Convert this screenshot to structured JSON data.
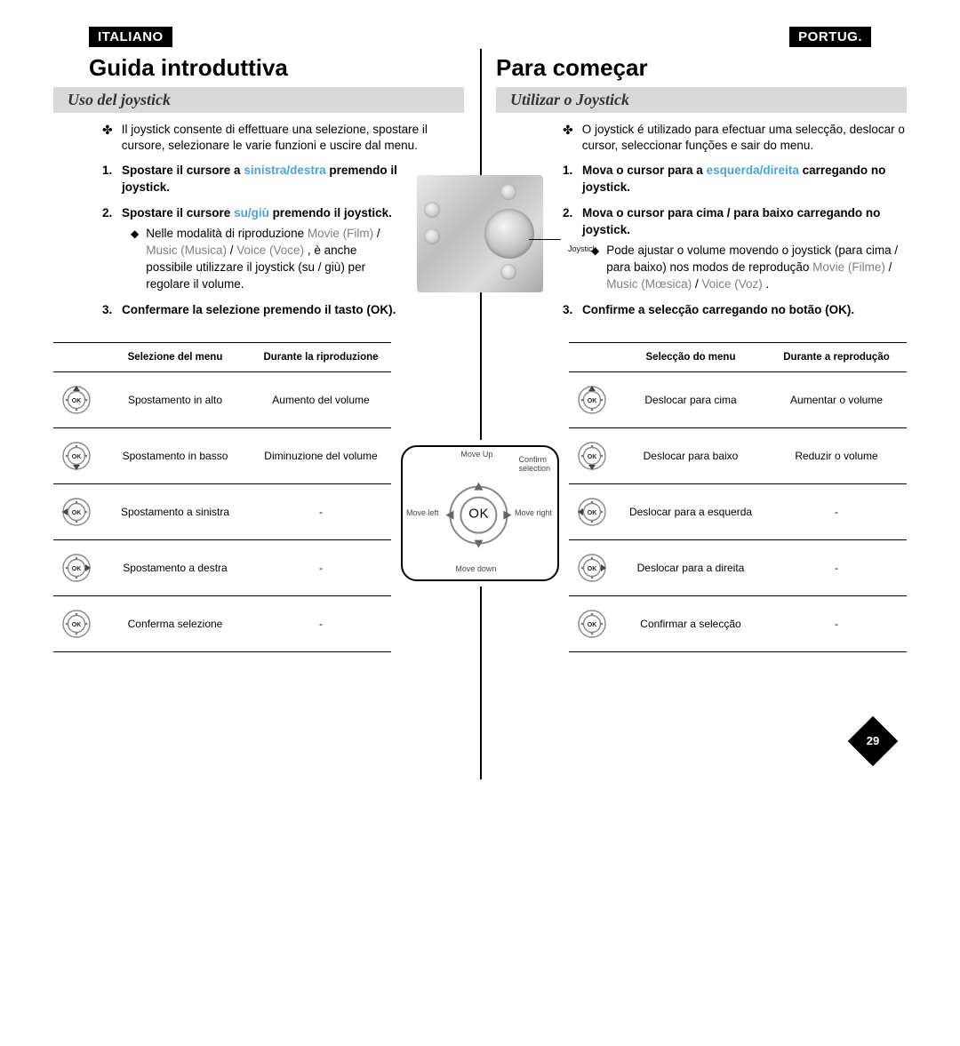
{
  "page_number": "29",
  "left": {
    "lang_badge": "ITALIANO",
    "title": "Guida introduttiva",
    "subtitle": "Uso del joystick",
    "intro": "Il joystick consente di effettuare una selezione, spostare il cursore, selezionare le varie funzioni e uscire dal menu.",
    "step1_pre": "Spostare il cursore a ",
    "step1_hl": "sinistra/destra",
    "step1_post": " premendo il joystick.",
    "step2_pre": "Spostare il cursore ",
    "step2_hl": "su/giù",
    "step2_post": " premendo il joystick.",
    "step2_sub_a": "Nelle modalità di riproduzione ",
    "step2_sub_grey1": "Movie (Film)",
    "step2_sub_slash": " / ",
    "step2_sub_grey2": "Music (Musica)",
    "step2_sub_grey3": "Voice (Voce)",
    "step2_sub_b": " , è anche possibile utilizzare il joystick (su / giù) per regolare il volume.",
    "step3": "Confermare la selezione premendo il tasto (OK).",
    "table": {
      "h1": "",
      "h2": "Selezione del menu",
      "h3": "Durante la riproduzione",
      "rows": [
        {
          "dir": "up",
          "c2": "Spostamento in alto",
          "c3": "Aumento del volume"
        },
        {
          "dir": "down",
          "c2": "Spostamento in basso",
          "c3": "Diminuzione del volume"
        },
        {
          "dir": "left",
          "c2": "Spostamento a sinistra",
          "c3": "-"
        },
        {
          "dir": "right",
          "c2": "Spostamento a destra",
          "c3": "-"
        },
        {
          "dir": "ok",
          "c2": "Conferma selezione",
          "c3": "-"
        }
      ]
    }
  },
  "right": {
    "lang_badge": "PORTUG.",
    "title": "Para começar",
    "subtitle": "Utilizar o Joystick",
    "intro": "O joystick é utilizado para efectuar uma selecção, deslocar o cursor, seleccionar funções e sair do menu.",
    "step1_pre": "Mova o cursor para a ",
    "step1_hl": "esquerda/direita",
    "step1_post": " carregando no joystick.",
    "step2": "Mova o cursor para cima / para baixo carregando no joystick.",
    "step2_sub_a": "Pode ajustar o volume movendo o joystick (para cima / para baixo) nos modos de reprodução ",
    "step2_sub_grey1": "Movie (Filme)",
    "step2_sub_slash": " / ",
    "step2_sub_grey2": "Music (Mœsica)",
    "step2_sub_grey3": "Voice (Voz)",
    "step2_sub_b": " .",
    "step3": "Confirme a selecção carregando no botão (OK).",
    "table": {
      "h1": "",
      "h2": "Selecção do menu",
      "h3": "Durante a reprodução",
      "rows": [
        {
          "dir": "up",
          "c2": "Deslocar para cima",
          "c3": "Aumentar o volume"
        },
        {
          "dir": "down",
          "c2": "Deslocar para baixo",
          "c3": "Reduzir o volume"
        },
        {
          "dir": "left",
          "c2": "Deslocar para a esquerda",
          "c3": "-"
        },
        {
          "dir": "right",
          "c2": "Deslocar para a direita",
          "c3": "-"
        },
        {
          "dir": "ok",
          "c2": "Confirmar a selecção",
          "c3": "-"
        }
      ]
    }
  },
  "device": {
    "label": "Joystick"
  },
  "joystick_diagram": {
    "up": "Move Up",
    "down": "Move down",
    "left": "Move left",
    "right": "Move right",
    "confirm": "Confirm\nselection",
    "ok": "OK"
  },
  "colors": {
    "highlight": "#4da3cf",
    "grey_text": "#808080",
    "subtitle_bg": "#d9d9d9",
    "black": "#000000",
    "white": "#ffffff"
  }
}
